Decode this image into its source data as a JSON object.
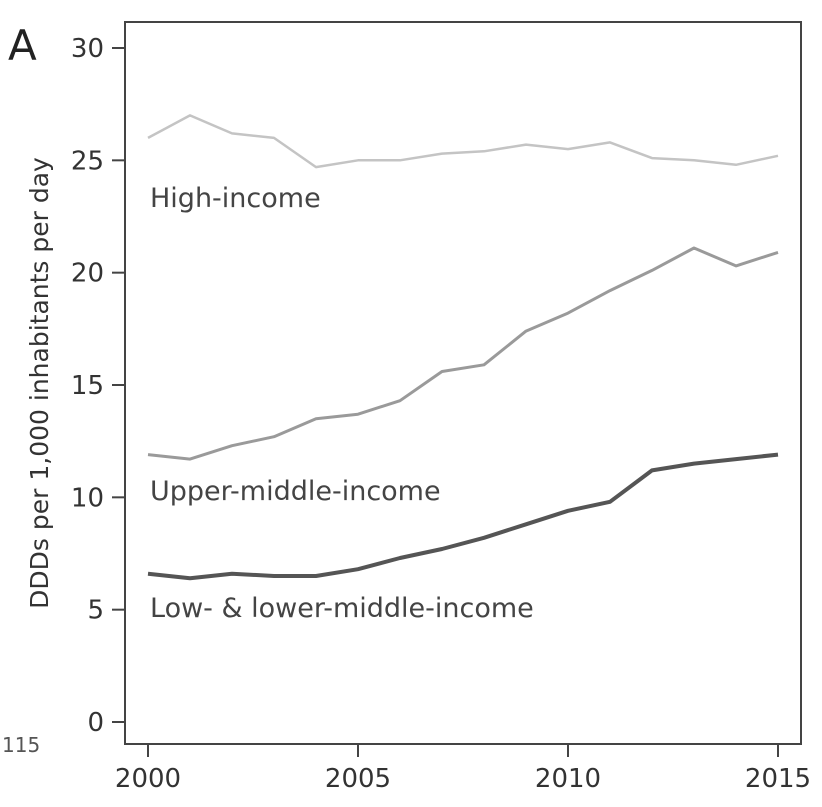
{
  "panel_label": "A",
  "margin_artifact": "115",
  "chart_data": {
    "type": "line",
    "title": "",
    "xlabel": "",
    "ylabel": "DDDs per 1,000 inhabitants per day",
    "xlim": [
      2000,
      2015
    ],
    "ylim": [
      0,
      30
    ],
    "xticks": [
      2000,
      2005,
      2010,
      2015
    ],
    "yticks": [
      0,
      5,
      10,
      15,
      20,
      25,
      30
    ],
    "grid": false,
    "x": [
      2000,
      2001,
      2002,
      2003,
      2004,
      2005,
      2006,
      2007,
      2008,
      2009,
      2010,
      2011,
      2012,
      2013,
      2014,
      2015
    ],
    "series": [
      {
        "name": "High-income",
        "color": "#c4c4c4",
        "values": [
          26.0,
          27.0,
          26.2,
          26.0,
          24.7,
          25.0,
          25.0,
          25.3,
          25.4,
          25.7,
          25.5,
          25.8,
          25.1,
          25.0,
          24.8,
          25.2
        ]
      },
      {
        "name": "Upper-middle-income",
        "color": "#9a9a9a",
        "values": [
          11.9,
          11.7,
          12.3,
          12.7,
          13.5,
          13.7,
          14.3,
          15.6,
          15.9,
          17.4,
          18.2,
          19.2,
          20.1,
          21.1,
          20.3,
          20.9
        ]
      },
      {
        "name": "Low- & lower-middle-income",
        "color": "#555555",
        "values": [
          6.6,
          6.4,
          6.6,
          6.5,
          6.5,
          6.8,
          7.3,
          7.7,
          8.2,
          8.8,
          9.4,
          9.8,
          11.2,
          11.5,
          11.7,
          11.9
        ]
      }
    ]
  }
}
